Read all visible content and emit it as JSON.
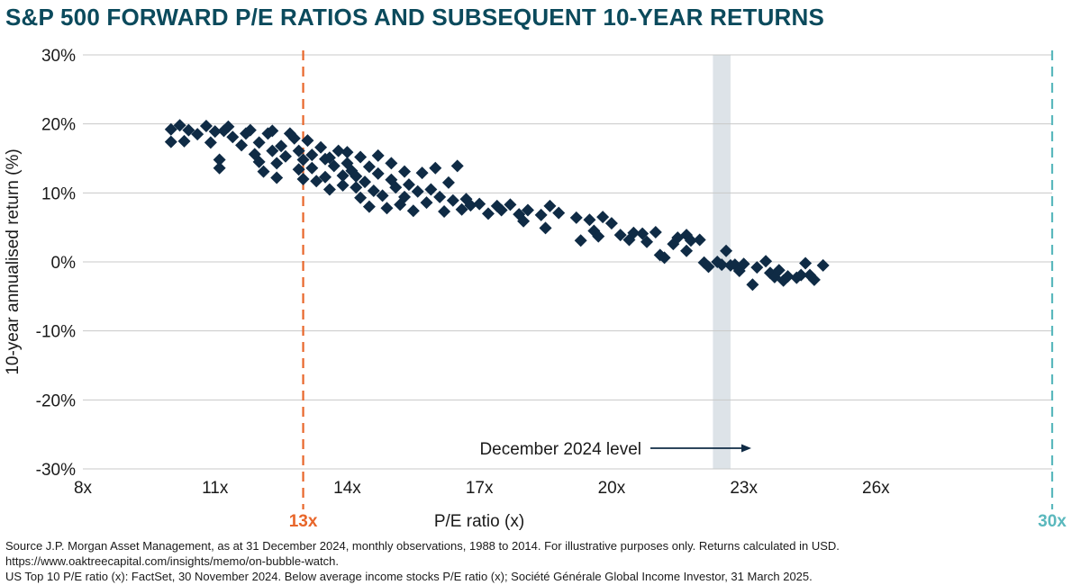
{
  "title": "S&P 500 FORWARD P/E RATIOS AND SUBSEQUENT 10-YEAR RETURNS",
  "colors": {
    "title": "#0b4a5c",
    "points": "#0f2b45",
    "line_13x": "#e8662a",
    "line_30x": "#5ab8bd",
    "band": "#dde3e8",
    "grid": "#c8c8c8"
  },
  "chart_data": {
    "type": "scatter",
    "xlabel": "P/E ratio (x)",
    "ylabel": "10-year annualised return (%)",
    "xlim": [
      8,
      30
    ],
    "ylim": [
      -30,
      30
    ],
    "x_ticks": [
      8,
      11,
      14,
      17,
      20,
      23,
      26
    ],
    "x_tick_labels": [
      "8x",
      "11x",
      "14x",
      "17x",
      "20x",
      "23x",
      "26x"
    ],
    "y_ticks": [
      30,
      20,
      10,
      0,
      -10,
      -20,
      -30
    ],
    "y_tick_labels": [
      "30%",
      "20%",
      "10%",
      "0%",
      "-10%",
      "-20%",
      "-30%"
    ],
    "reference_lines": [
      {
        "x": 13,
        "label": "13x",
        "style": "dashed",
        "color": "#e8662a"
      },
      {
        "x": 30,
        "label": "30x",
        "style": "dashed",
        "color": "#5ab8bd"
      }
    ],
    "highlight_band": {
      "x_range": [
        22.3,
        22.7
      ],
      "label": "December 2024 level"
    },
    "annotation": "December 2024 level",
    "series": [
      {
        "name": "Monthly observations 1988-2014",
        "points": [
          [
            10.0,
            19.2
          ],
          [
            10.0,
            17.4
          ],
          [
            10.2,
            19.8
          ],
          [
            10.3,
            17.5
          ],
          [
            10.4,
            19.1
          ],
          [
            10.6,
            18.5
          ],
          [
            10.8,
            19.7
          ],
          [
            10.9,
            17.3
          ],
          [
            11.0,
            18.9
          ],
          [
            11.1,
            14.8
          ],
          [
            11.1,
            13.6
          ],
          [
            11.2,
            19.0
          ],
          [
            11.3,
            19.6
          ],
          [
            11.4,
            18.1
          ],
          [
            11.6,
            16.9
          ],
          [
            11.7,
            18.6
          ],
          [
            11.8,
            19.1
          ],
          [
            11.9,
            15.6
          ],
          [
            12.0,
            17.3
          ],
          [
            12.0,
            14.5
          ],
          [
            12.1,
            13.1
          ],
          [
            12.2,
            18.6
          ],
          [
            12.3,
            19.0
          ],
          [
            12.3,
            16.1
          ],
          [
            12.4,
            14.3
          ],
          [
            12.4,
            12.2
          ],
          [
            12.5,
            16.8
          ],
          [
            12.6,
            15.3
          ],
          [
            12.7,
            18.6
          ],
          [
            12.8,
            17.9
          ],
          [
            12.9,
            16.1
          ],
          [
            12.9,
            13.4
          ],
          [
            13.0,
            12.0
          ],
          [
            13.0,
            14.8
          ],
          [
            13.1,
            17.6
          ],
          [
            13.2,
            15.5
          ],
          [
            13.2,
            13.6
          ],
          [
            13.3,
            11.7
          ],
          [
            13.4,
            16.6
          ],
          [
            13.5,
            14.9
          ],
          [
            13.5,
            12.3
          ],
          [
            13.6,
            10.5
          ],
          [
            13.6,
            15.1
          ],
          [
            13.7,
            13.9
          ],
          [
            13.8,
            16.1
          ],
          [
            13.9,
            12.5
          ],
          [
            13.9,
            11.1
          ],
          [
            14.0,
            14.3
          ],
          [
            14.0,
            15.9
          ],
          [
            14.1,
            13.2
          ],
          [
            14.2,
            10.8
          ],
          [
            14.2,
            12.4
          ],
          [
            14.3,
            15.2
          ],
          [
            14.3,
            9.3
          ],
          [
            14.4,
            11.6
          ],
          [
            14.5,
            13.8
          ],
          [
            14.5,
            8.0
          ],
          [
            14.6,
            10.3
          ],
          [
            14.7,
            15.4
          ],
          [
            14.7,
            12.8
          ],
          [
            14.8,
            9.6
          ],
          [
            14.9,
            7.8
          ],
          [
            15.0,
            11.9
          ],
          [
            15.0,
            14.3
          ],
          [
            15.1,
            10.8
          ],
          [
            15.2,
            8.3
          ],
          [
            15.3,
            13.1
          ],
          [
            15.3,
            9.4
          ],
          [
            15.4,
            11.2
          ],
          [
            15.5,
            7.4
          ],
          [
            15.6,
            10.2
          ],
          [
            15.7,
            12.9
          ],
          [
            15.8,
            8.6
          ],
          [
            15.9,
            10.5
          ],
          [
            16.0,
            13.6
          ],
          [
            16.1,
            9.4
          ],
          [
            16.2,
            7.3
          ],
          [
            16.3,
            11.5
          ],
          [
            16.4,
            8.9
          ],
          [
            16.5,
            13.9
          ],
          [
            16.6,
            7.6
          ],
          [
            16.7,
            9.1
          ],
          [
            16.8,
            8.2
          ],
          [
            17.0,
            8.4
          ],
          [
            17.2,
            7.0
          ],
          [
            17.4,
            8.1
          ],
          [
            17.5,
            7.5
          ],
          [
            17.7,
            8.3
          ],
          [
            17.9,
            6.9
          ],
          [
            18.0,
            5.9
          ],
          [
            18.1,
            7.5
          ],
          [
            18.4,
            6.8
          ],
          [
            18.5,
            4.9
          ],
          [
            18.6,
            8.1
          ],
          [
            18.8,
            7.1
          ],
          [
            19.2,
            6.4
          ],
          [
            19.3,
            3.1
          ],
          [
            19.5,
            6.1
          ],
          [
            19.6,
            4.5
          ],
          [
            19.7,
            3.7
          ],
          [
            19.8,
            6.5
          ],
          [
            20.0,
            5.6
          ],
          [
            20.2,
            3.9
          ],
          [
            20.4,
            3.2
          ],
          [
            20.5,
            4.2
          ],
          [
            20.7,
            4.1
          ],
          [
            20.8,
            2.9
          ],
          [
            21.0,
            4.3
          ],
          [
            21.1,
            1.0
          ],
          [
            21.2,
            0.6
          ],
          [
            21.4,
            2.6
          ],
          [
            21.5,
            3.5
          ],
          [
            21.7,
            3.9
          ],
          [
            21.7,
            1.6
          ],
          [
            21.8,
            3.1
          ],
          [
            22.0,
            3.2
          ],
          [
            22.1,
            -0.1
          ],
          [
            22.2,
            -0.7
          ],
          [
            22.4,
            0.0
          ],
          [
            22.5,
            -0.4
          ],
          [
            22.6,
            1.6
          ],
          [
            22.7,
            -0.5
          ],
          [
            22.8,
            -0.4
          ],
          [
            22.9,
            -1.3
          ],
          [
            23.0,
            -0.3
          ],
          [
            23.2,
            -3.3
          ],
          [
            23.3,
            -0.8
          ],
          [
            23.5,
            0.1
          ],
          [
            23.6,
            -1.6
          ],
          [
            23.7,
            -2.2
          ],
          [
            23.8,
            -1.2
          ],
          [
            23.9,
            -2.7
          ],
          [
            24.0,
            -2.1
          ],
          [
            24.2,
            -2.3
          ],
          [
            24.3,
            -1.9
          ],
          [
            24.4,
            -0.2
          ],
          [
            24.5,
            -1.9
          ],
          [
            24.6,
            -2.6
          ],
          [
            24.8,
            -0.5
          ]
        ]
      }
    ]
  },
  "source": {
    "line1": "Source J.P. Morgan Asset Management, as at 31 December 2024, monthly observations, 1988 to 2014. For illustrative purposes only. Returns calculated in USD.",
    "line2": "https://www.oaktreecapital.com/insights/memo/on-bubble-watch.",
    "line3": "US Top 10 P/E ratio (x): FactSet, 30 November 2024. Below average income stocks P/E ratio (x); Société Générale Global Income Investor, 31 March 2025."
  }
}
